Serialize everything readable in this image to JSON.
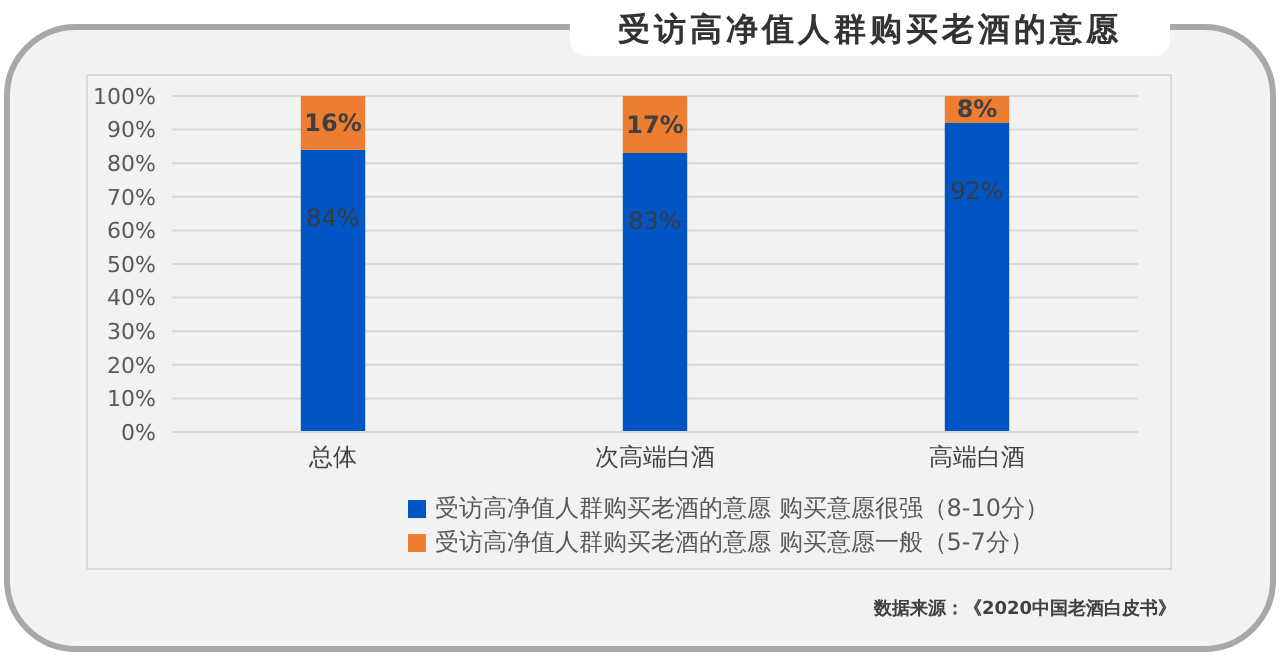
{
  "chart_data": {
    "type": "bar",
    "title": "受访高净值人群购买老酒的意愿",
    "categories": [
      "总体",
      "次高端白酒",
      "高端白酒"
    ],
    "stacked": true,
    "series": [
      {
        "name": "受访高净值人群购买老酒的意愿 购买意愿很强（8-10分）",
        "color": "#0055c4",
        "values": [
          84,
          83,
          92
        ],
        "value_labels": [
          "84%",
          "83%",
          "92%"
        ]
      },
      {
        "name": "受访高净值人群购买老酒的意愿 购买意愿一般（5-7分）",
        "color": "#ed7d31",
        "values": [
          16,
          17,
          8
        ],
        "value_labels": [
          "16%",
          "17%",
          "8%"
        ]
      }
    ],
    "ylim": [
      0,
      100
    ],
    "yticks": [
      {
        "value": 0,
        "label": "0%"
      },
      {
        "value": 10,
        "label": "10%"
      },
      {
        "value": 20,
        "label": "20%"
      },
      {
        "value": 30,
        "label": "30%"
      },
      {
        "value": 40,
        "label": "40%"
      },
      {
        "value": 50,
        "label": "50%"
      },
      {
        "value": 60,
        "label": "60%"
      },
      {
        "value": 70,
        "label": "70%"
      },
      {
        "value": 80,
        "label": "80%"
      },
      {
        "value": 90,
        "label": "90%"
      },
      {
        "value": 100,
        "label": "100%"
      }
    ],
    "grid": "y",
    "legend": "bottom",
    "annotations": [
      "数据来源：《2020中国老酒白皮书》"
    ]
  }
}
